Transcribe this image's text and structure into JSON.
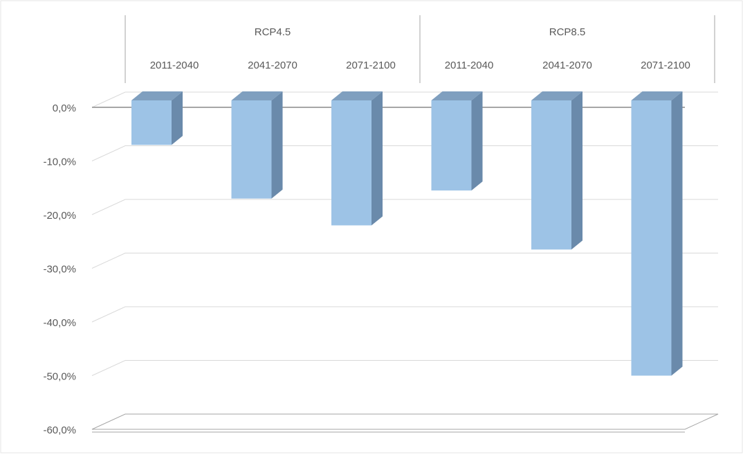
{
  "chart_data": {
    "type": "bar",
    "style": "3d-column",
    "groups": [
      {
        "label": "RCP4.5",
        "categories": [
          "2011-2040",
          "2041-2070",
          "2071-2100"
        ]
      },
      {
        "label": "RCP8.5",
        "categories": [
          "2011-2040",
          "2041-2070",
          "2071-2100"
        ]
      }
    ],
    "categories": [
      "2011-2040",
      "2041-2070",
      "2071-2100",
      "2011-2040",
      "2041-2070",
      "2071-2100"
    ],
    "values": [
      -7,
      -17,
      -22,
      -15.5,
      -26.5,
      -50
    ],
    "title": "",
    "xlabel": "",
    "ylabel": "",
    "ylim": [
      -60,
      0
    ],
    "yticks": [
      0,
      -10,
      -20,
      -30,
      -40,
      -50,
      -60
    ],
    "ytick_labels": [
      "0,0%",
      "-10,0%",
      "-20,0%",
      "-30,0%",
      "-40,0%",
      "-50,0%",
      "-60,0%"
    ],
    "grid": true,
    "legend": "none",
    "colors": {
      "bar_front": "#9dc3e6",
      "bar_side": "#6a8aab",
      "bar_top": "#7f9fbf",
      "grid": "#d9d9d9",
      "axis": "#a6a6a6",
      "text": "#595959"
    }
  }
}
